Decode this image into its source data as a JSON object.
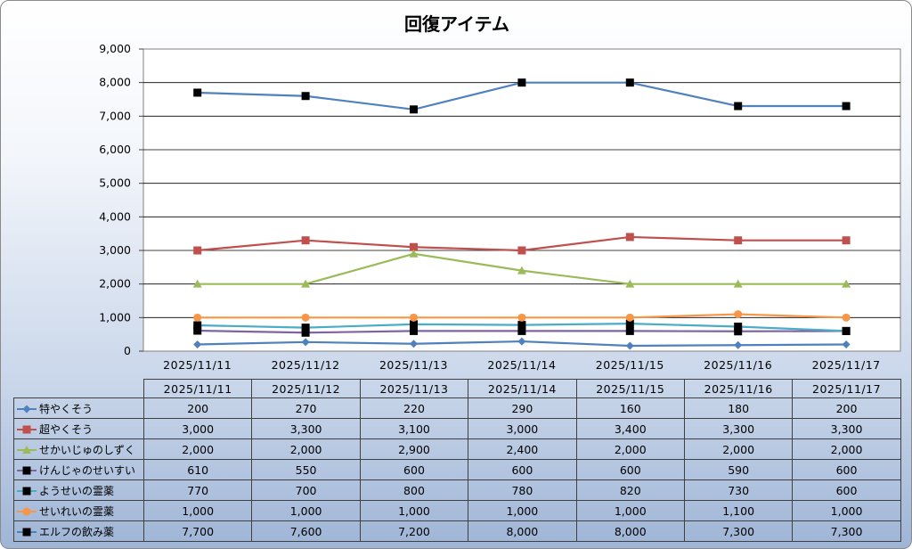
{
  "chart_data": {
    "type": "line",
    "title": "回復アイテム",
    "categories": [
      "2025/11/11",
      "2025/11/12",
      "2025/11/13",
      "2025/11/14",
      "2025/11/15",
      "2025/11/16",
      "2025/11/17"
    ],
    "ylim": [
      0,
      9000
    ],
    "yticks": [
      "0",
      "1,000",
      "2,000",
      "3,000",
      "4,000",
      "5,000",
      "6,000",
      "7,000",
      "8,000",
      "9,000"
    ],
    "grid": true,
    "legend": "data-table",
    "series": [
      {
        "name": "特やくそう",
        "values": [
          200,
          270,
          220,
          290,
          160,
          180,
          200
        ],
        "labels": [
          "200",
          "270",
          "220",
          "290",
          "160",
          "180",
          "200"
        ],
        "color": "#4f81bd",
        "marker": "diamond",
        "marker_color": "#4f81bd"
      },
      {
        "name": "超やくそう",
        "values": [
          3000,
          3300,
          3100,
          3000,
          3400,
          3300,
          3300
        ],
        "labels": [
          "3,000",
          "3,300",
          "3,100",
          "3,000",
          "3,400",
          "3,300",
          "3,300"
        ],
        "color": "#c0504d",
        "marker": "square",
        "marker_color": "#c0504d"
      },
      {
        "name": "せかいじゅのしずく",
        "values": [
          2000,
          2000,
          2900,
          2400,
          2000,
          2000,
          2000
        ],
        "labels": [
          "2,000",
          "2,000",
          "2,900",
          "2,400",
          "2,000",
          "2,000",
          "2,000"
        ],
        "color": "#9bbb59",
        "marker": "triangle",
        "marker_color": "#9bbb59"
      },
      {
        "name": "けんじゃのせいすい",
        "values": [
          610,
          550,
          600,
          600,
          600,
          590,
          600
        ],
        "labels": [
          "610",
          "550",
          "600",
          "600",
          "600",
          "590",
          "600"
        ],
        "color": "#8064a2",
        "marker": "square",
        "marker_color": "#000000"
      },
      {
        "name": "ようせいの霊薬",
        "values": [
          770,
          700,
          800,
          780,
          820,
          730,
          600
        ],
        "labels": [
          "770",
          "700",
          "800",
          "780",
          "820",
          "730",
          "600"
        ],
        "color": "#4bacc6",
        "marker": "square",
        "marker_color": "#000000"
      },
      {
        "name": "せいれいの霊薬",
        "values": [
          1000,
          1000,
          1000,
          1000,
          1000,
          1100,
          1000
        ],
        "labels": [
          "1,000",
          "1,000",
          "1,000",
          "1,000",
          "1,000",
          "1,100",
          "1,000"
        ],
        "color": "#f79646",
        "marker": "circle",
        "marker_color": "#f79646"
      },
      {
        "name": "エルフの飲み薬",
        "values": [
          7700,
          7600,
          7200,
          8000,
          8000,
          7300,
          7300
        ],
        "labels": [
          "7,700",
          "7,600",
          "7,200",
          "8,000",
          "8,000",
          "7,300",
          "7,300"
        ],
        "color": "#4f81bd",
        "marker": "square",
        "marker_color": "#000000"
      }
    ]
  }
}
